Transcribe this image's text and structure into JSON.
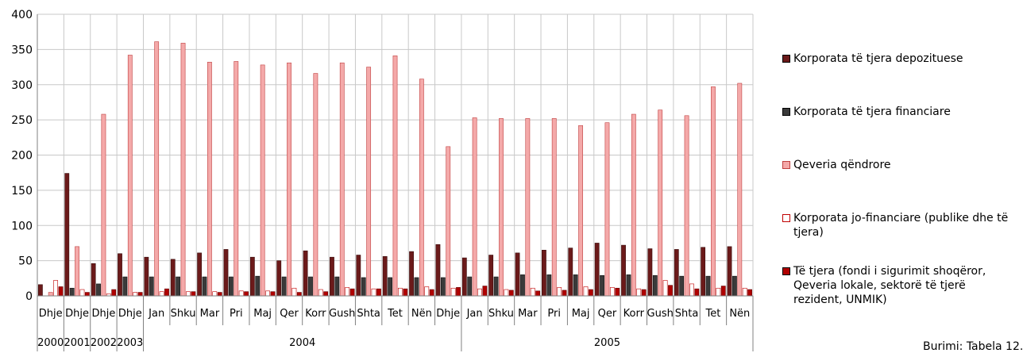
{
  "chart_data": {
    "type": "bar",
    "ylim": [
      0,
      400
    ],
    "yticks": [
      0,
      50,
      100,
      150,
      200,
      250,
      300,
      350,
      400
    ],
    "grid": true,
    "legend_position": "right",
    "categories": [
      "Dhje",
      "Dhje",
      "Dhje",
      "Dhje",
      "Jan",
      "Shku",
      "Mar",
      "Pri",
      "Maj",
      "Qer",
      "Korr",
      "Gush",
      "Shta",
      "Tet",
      "Nën",
      "Dhje",
      "Jan",
      "Shku",
      "Mar",
      "Pri",
      "Maj",
      "Qer",
      "Korr",
      "Gush",
      "Shta",
      "Tet",
      "Nën"
    ],
    "year_groups": [
      {
        "label": "2000",
        "start": 0,
        "end": 0
      },
      {
        "label": "2001",
        "start": 1,
        "end": 1
      },
      {
        "label": "2002",
        "start": 2,
        "end": 2
      },
      {
        "label": "2003",
        "start": 3,
        "end": 3
      },
      {
        "label": "2004",
        "start": 4,
        "end": 15
      },
      {
        "label": "2005",
        "start": 16,
        "end": 26
      }
    ],
    "series": [
      {
        "name": "Korporata të tjera depozituese",
        "color": "#6b1a1a",
        "values": [
          16,
          174,
          46,
          60,
          55,
          52,
          61,
          66,
          55,
          50,
          64,
          55,
          58,
          56,
          63,
          73,
          54,
          58,
          61,
          65,
          68,
          75,
          72,
          67,
          66,
          69,
          70
        ]
      },
      {
        "name": "Korporata të tjera financiare",
        "color": "#3a3a3a",
        "values": [
          0,
          11,
          17,
          27,
          27,
          27,
          27,
          27,
          28,
          27,
          27,
          27,
          26,
          26,
          26,
          26,
          27,
          27,
          30,
          30,
          30,
          29,
          30,
          29,
          28,
          28,
          28
        ]
      },
      {
        "name": "Qeveria qëndrore",
        "color": "#f4a9a9",
        "values": [
          5,
          70,
          258,
          342,
          361,
          359,
          332,
          333,
          328,
          331,
          316,
          331,
          325,
          341,
          308,
          212,
          253,
          252,
          252,
          252,
          242,
          246,
          258,
          264,
          256,
          297,
          302
        ]
      },
      {
        "name": "Korporata jo-financiare (publike dhe të tjera)",
        "color": "#ffffff",
        "values": [
          22,
          9,
          3,
          5,
          6,
          6,
          6,
          7,
          7,
          11,
          9,
          12,
          10,
          11,
          13,
          11,
          10,
          9,
          11,
          12,
          13,
          12,
          10,
          22,
          17,
          11,
          11
        ]
      },
      {
        "name": "Të tjera (fondi i sigurimit shoqëror, Qeveria lokale, sektorë të tjerë rezident, UNMIK)",
        "color": "#b00000",
        "values": [
          13,
          5,
          9,
          5,
          10,
          6,
          5,
          6,
          6,
          5,
          6,
          10,
          10,
          10,
          9,
          12,
          14,
          8,
          7,
          8,
          9,
          11,
          9,
          15,
          10,
          14,
          9
        ]
      }
    ],
    "legend_labels": [
      "Korporata të tjera depozituese",
      "Korporata të tjera financiare",
      "Qeveria qëndrore",
      "Korporata jo-financiare (publike dhe të tjera)",
      "Të tjera (fondi i sigurimit shoqëror, Qeveria lokale, sektorë të tjerë rezident, UNMIK)"
    ],
    "source": "Burimi: Tabela 12."
  }
}
